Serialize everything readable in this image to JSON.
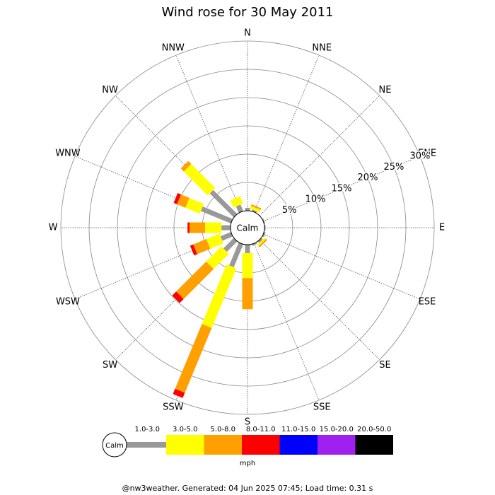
{
  "chart_data": {
    "type": "windrose",
    "title": "Wind rose for 30 May 2011",
    "directions": [
      "N",
      "NNE",
      "NE",
      "ENE",
      "E",
      "ESE",
      "SE",
      "SSE",
      "S",
      "SSW",
      "SW",
      "WSW",
      "W",
      "WNW",
      "NW",
      "NNW"
    ],
    "calm_label": "Calm",
    "unit": "mph",
    "rlim": [
      0,
      30
    ],
    "rticks": [
      {
        "value": 5,
        "label": "5%"
      },
      {
        "value": 10,
        "label": "10%"
      },
      {
        "value": 15,
        "label": "15%"
      },
      {
        "value": 20,
        "label": "20%"
      },
      {
        "value": 25,
        "label": "25%"
      },
      {
        "value": 30,
        "label": "30%"
      }
    ],
    "series": [
      {
        "name": "1.0-3.0",
        "color": "#999999",
        "values": [
          0.5,
          0.3,
          0,
          0.2,
          0.2,
          0.3,
          0.4,
          0.3,
          1.5,
          4.4,
          2.6,
          2,
          1.6,
          5.75,
          6,
          1.25
        ]
      },
      {
        "name": "3.0-5.0",
        "color": "#ffff00",
        "values": [
          0,
          0.5,
          0,
          0,
          0,
          0,
          0.3,
          0,
          4.4,
          11.4,
          3.8,
          2.5,
          2.9,
          2.75,
          6,
          1.4
        ]
      },
      {
        "name": "5.0-8.0",
        "color": "#ffa000",
        "values": [
          0,
          0.3,
          0,
          0,
          0,
          0,
          0.3,
          0,
          5.5,
          12.4,
          7.5,
          2.5,
          2.75,
          1.6,
          0.75,
          0
        ]
      },
      {
        "name": "8.0-11.0",
        "color": "#ff0000",
        "values": [
          0,
          0,
          0,
          0,
          0,
          0,
          0,
          0,
          0,
          1,
          1,
          0.6,
          0.35,
          0.65,
          0,
          0
        ]
      },
      {
        "name": "11.0-15.0",
        "color": "#0000ff",
        "values": [
          0,
          0,
          0,
          0,
          0,
          0,
          0,
          0,
          0,
          0,
          0,
          0,
          0,
          0,
          0,
          0
        ]
      },
      {
        "name": "15.0-20.0",
        "color": "#a020f0",
        "values": [
          0,
          0,
          0,
          0,
          0,
          0,
          0,
          0,
          0,
          0,
          0,
          0,
          0,
          0,
          0,
          0
        ]
      },
      {
        "name": "20.0-50.0",
        "color": "#000000",
        "values": [
          0,
          0,
          0,
          0,
          0,
          0,
          0,
          0,
          0,
          0,
          0,
          0,
          0,
          0,
          0,
          0
        ]
      }
    ],
    "footer": "@nw3weather. Generated: 04 Jun 2025 07:45; Load time: 0.31 s"
  }
}
